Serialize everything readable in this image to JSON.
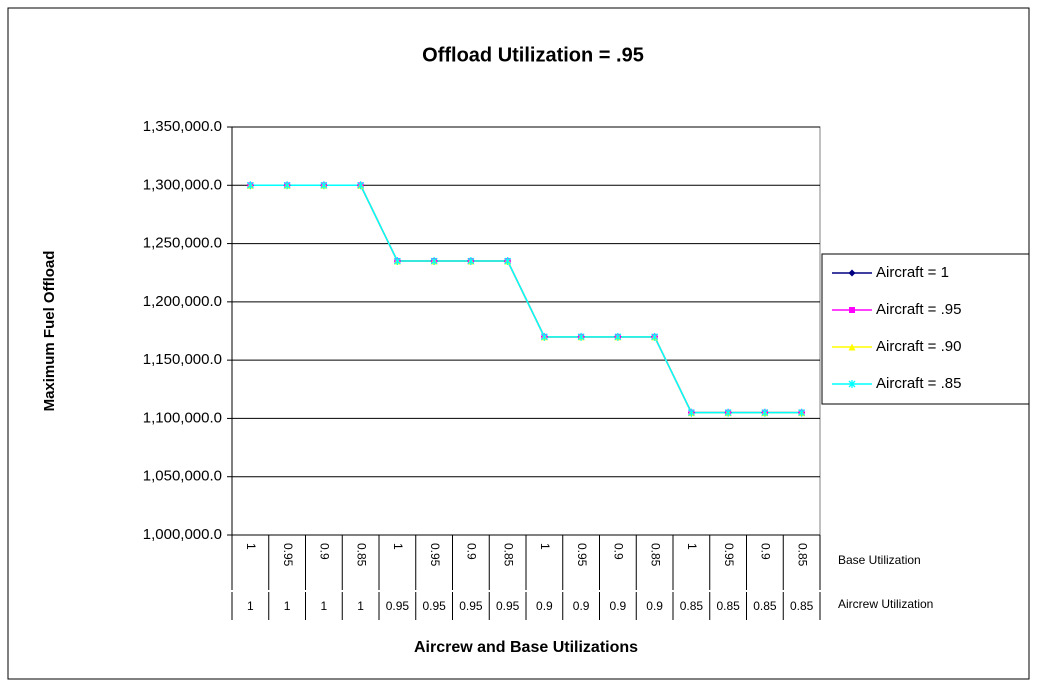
{
  "chart_data": {
    "type": "line",
    "title": "Offload Utilization = .95",
    "y_label": "Maximum Fuel Offload",
    "x_label": "Aircrew and Base Utilizations",
    "category_rows": [
      "Base Utilization",
      "Aircrew Utilization"
    ],
    "base_utilization": [
      "1",
      "0.95",
      "0.9",
      "0.85",
      "1",
      "0.95",
      "0.9",
      "0.85",
      "1",
      "0.95",
      "0.9",
      "0.85",
      "1",
      "0.95",
      "0.9",
      "0.85"
    ],
    "aircrew_utilization": [
      "1",
      "1",
      "1",
      "1",
      "0.95",
      "0.95",
      "0.95",
      "0.95",
      "0.9",
      "0.9",
      "0.9",
      "0.9",
      "0.85",
      "0.85",
      "0.85",
      "0.85"
    ],
    "series": [
      {
        "name": "Aircraft = 1",
        "color": "#000080",
        "marker": "diamond",
        "values": [
          1300000,
          1300000,
          1300000,
          1300000,
          1235000,
          1235000,
          1235000,
          1235000,
          1170000,
          1170000,
          1170000,
          1170000,
          1105000,
          1105000,
          1105000,
          1105000
        ]
      },
      {
        "name": "Aircraft = .95",
        "color": "#ff00ff",
        "marker": "square",
        "values": [
          1300000,
          1300000,
          1300000,
          1300000,
          1235000,
          1235000,
          1235000,
          1235000,
          1170000,
          1170000,
          1170000,
          1170000,
          1105000,
          1105000,
          1105000,
          1105000
        ]
      },
      {
        "name": "Aircraft = .90",
        "color": "#ffff00",
        "marker": "triangle",
        "values": [
          1300000,
          1300000,
          1300000,
          1300000,
          1235000,
          1235000,
          1235000,
          1235000,
          1170000,
          1170000,
          1170000,
          1170000,
          1105000,
          1105000,
          1105000,
          1105000
        ]
      },
      {
        "name": "Aircraft = .85",
        "color": "#00ffff",
        "marker": "x",
        "values": [
          1300000,
          1300000,
          1300000,
          1300000,
          1235000,
          1235000,
          1235000,
          1235000,
          1170000,
          1170000,
          1170000,
          1170000,
          1105000,
          1105000,
          1105000,
          1105000
        ]
      }
    ],
    "ylim": [
      1000000,
      1350000
    ],
    "yticks": [
      {
        "value": 1000000,
        "label": "1,000,000.0"
      },
      {
        "value": 1050000,
        "label": "1,050,000.0"
      },
      {
        "value": 1100000,
        "label": "1,100,000.0"
      },
      {
        "value": 1150000,
        "label": "1,150,000.0"
      },
      {
        "value": 1200000,
        "label": "1,200,000.0"
      },
      {
        "value": 1250000,
        "label": "1,250,000.0"
      },
      {
        "value": 1300000,
        "label": "1,300,000.0"
      },
      {
        "value": 1350000,
        "label": "1,350,000.0"
      }
    ],
    "grid": true,
    "legend": "right"
  }
}
